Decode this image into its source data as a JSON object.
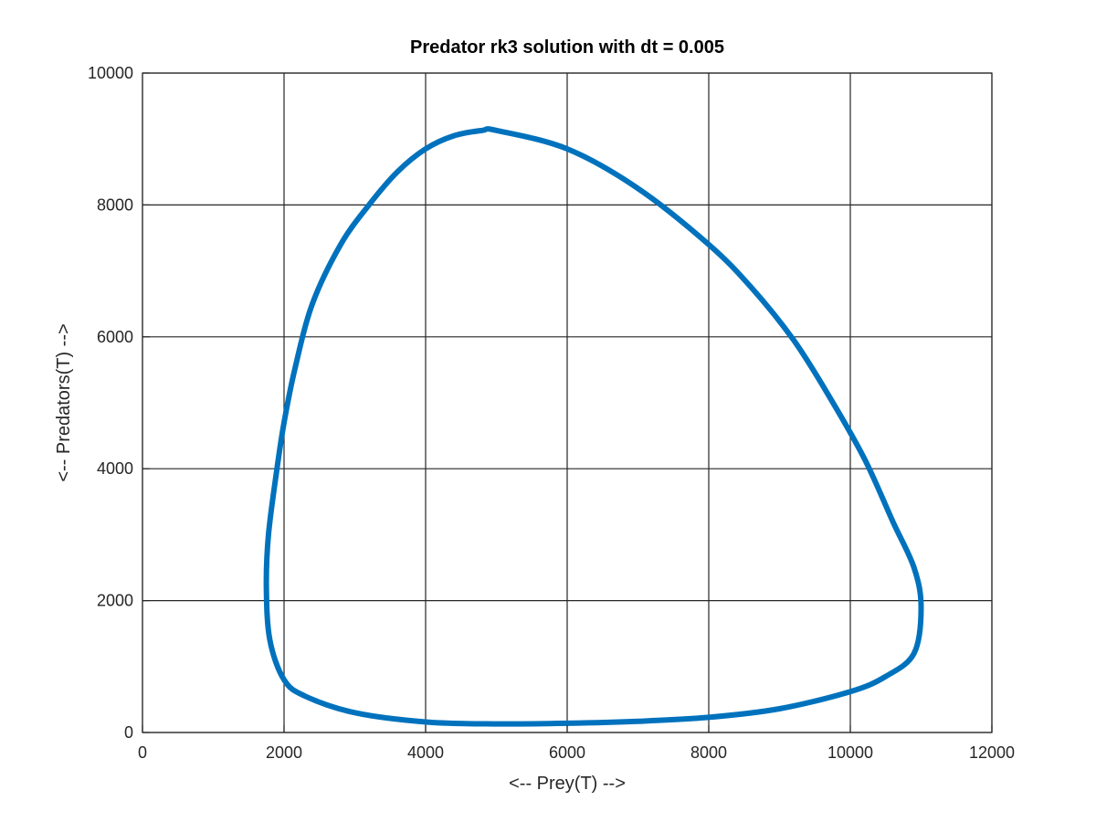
{
  "chart_data": {
    "type": "line",
    "title": "Predator rk3 solution with dt = 0.005",
    "xlabel": "<-- Prey(T) -->",
    "ylabel": "<-- Predators(T) -->",
    "xlim": [
      0,
      12000
    ],
    "ylim": [
      0,
      10000
    ],
    "xticks": [
      0,
      2000,
      4000,
      6000,
      8000,
      10000,
      12000
    ],
    "yticks": [
      0,
      2000,
      4000,
      6000,
      8000,
      10000
    ],
    "xtick_labels": [
      "0",
      "2000",
      "4000",
      "6000",
      "8000",
      "10000",
      "12000"
    ],
    "ytick_labels": [
      "0",
      "2000",
      "4000",
      "6000",
      "8000",
      "10000"
    ],
    "grid": true,
    "closed_curve": true,
    "series": [
      {
        "color": "#0072bd",
        "x": [
          5000,
          6000,
          7000,
          8000,
          8600,
          9200,
          9700,
          10200,
          10600,
          10900,
          11000,
          10900,
          10500,
          10000,
          9000,
          8000,
          7000,
          6000,
          5000,
          4000,
          3000,
          2300,
          2000,
          1800,
          1750,
          1780,
          1900,
          2000,
          2150,
          2400,
          2800,
          3200,
          3600,
          4000,
          4400,
          4800,
          5000
        ],
        "y": [
          9130,
          8850,
          8250,
          7400,
          6750,
          5950,
          5100,
          4150,
          3200,
          2500,
          1900,
          1200,
          850,
          620,
          360,
          230,
          170,
          140,
          130,
          160,
          300,
          550,
          800,
          1400,
          2200,
          3000,
          4000,
          4700,
          5500,
          6500,
          7400,
          8000,
          8500,
          8850,
          9050,
          9130,
          9130
        ]
      }
    ]
  }
}
